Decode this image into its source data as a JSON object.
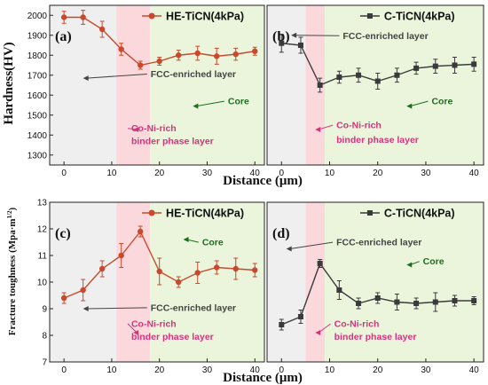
{
  "colors": {
    "he_series": "#c8492d",
    "c_series": "#3a3a3a",
    "gray_region": "#efefef",
    "pink_region": "#fbd8dc",
    "green_region": "#ebf5dc",
    "annotation_dark": "#444444",
    "annotation_pink": "#d6337f",
    "annotation_green": "#1e6e1e"
  },
  "figure": {
    "top_ylabel": "Hardness(HV)",
    "bottom_ylabel": "Fracture toughness (Mpa·m",
    "bottom_ylabel_sup": "1/2",
    "bottom_ylabel_close": ")",
    "xlabel": "Distance (μm)"
  },
  "chart_data": [
    {
      "panel": "(a)",
      "type": "line",
      "legend": "HE-TiCN(4kPa)",
      "legend_placement": "top-right",
      "marker": "circle",
      "ylim": [
        1250,
        2050
      ],
      "yticks": [
        1300,
        1400,
        1500,
        1600,
        1700,
        1800,
        1900,
        2000
      ],
      "xlim": [
        -3,
        42
      ],
      "xticks": [
        0,
        10,
        20,
        30,
        40
      ],
      "regions": [
        {
          "kind": "gray",
          "x": [
            -3,
            11
          ]
        },
        {
          "kind": "pink",
          "x": [
            11,
            18
          ]
        },
        {
          "kind": "green",
          "x": [
            18,
            42
          ]
        }
      ],
      "series": [
        {
          "x": [
            0,
            4,
            8,
            12,
            16,
            20,
            24,
            28,
            32,
            36,
            40
          ],
          "y": [
            1990,
            1990,
            1930,
            1830,
            1750,
            1770,
            1800,
            1810,
            1795,
            1805,
            1820
          ],
          "err": [
            30,
            35,
            40,
            30,
            20,
            20,
            25,
            35,
            40,
            30,
            20
          ]
        }
      ],
      "annotations": [
        {
          "text": "FCC-enriched layer",
          "color": "dark",
          "arrow_to": [
            4,
            1685
          ]
        },
        {
          "text": "Core",
          "color": "green",
          "arrow_to": [
            27,
            1545
          ]
        },
        {
          "text": "Co-Ni-rich",
          "color": "pink",
          "arrow_to": [
            14.5,
            1428
          ]
        },
        {
          "text": "binder phase layer",
          "color": "pink"
        }
      ]
    },
    {
      "panel": "(b)",
      "type": "line",
      "legend": "C-TiCN(4kPa)",
      "legend_placement": "top-right",
      "marker": "square",
      "ylim": [
        1250,
        2050
      ],
      "xlim": [
        -3,
        42
      ],
      "xticks": [
        0,
        10,
        20,
        30,
        40
      ],
      "regions": [
        {
          "kind": "gray",
          "x": [
            -3,
            5
          ]
        },
        {
          "kind": "pink",
          "x": [
            5,
            9
          ]
        },
        {
          "kind": "green",
          "x": [
            9,
            42
          ]
        }
      ],
      "series": [
        {
          "x": [
            0,
            4,
            8,
            12,
            16,
            20,
            24,
            28,
            32,
            36,
            40
          ],
          "y": [
            1860,
            1850,
            1650,
            1690,
            1700,
            1670,
            1700,
            1735,
            1745,
            1750,
            1755
          ],
          "err": [
            45,
            40,
            35,
            30,
            35,
            40,
            35,
            30,
            35,
            40,
            35
          ]
        }
      ],
      "annotations": [
        {
          "text": "FCC-enriched layer",
          "color": "dark",
          "arrow_to": [
            2,
            1900
          ]
        },
        {
          "text": "Core",
          "color": "green",
          "arrow_to": [
            26,
            1545
          ]
        },
        {
          "text": "Co-Ni-rich",
          "color": "pink",
          "arrow_to": [
            7,
            1428
          ]
        },
        {
          "text": "binder phase layer",
          "color": "pink"
        }
      ]
    },
    {
      "panel": "(c)",
      "type": "line",
      "legend": "HE-TiCN(4kPa)",
      "legend_placement": "top-right",
      "marker": "circle",
      "ylim": [
        7,
        13
      ],
      "yticks": [
        7,
        8,
        9,
        10,
        11,
        12,
        13
      ],
      "xlim": [
        -3,
        42
      ],
      "xticks": [
        0,
        10,
        20,
        30,
        40
      ],
      "regions": [
        {
          "kind": "gray",
          "x": [
            -3,
            11
          ]
        },
        {
          "kind": "pink",
          "x": [
            11,
            18
          ]
        },
        {
          "kind": "green",
          "x": [
            18,
            42
          ]
        }
      ],
      "series": [
        {
          "x": [
            0,
            4,
            8,
            12,
            16,
            20,
            24,
            28,
            32,
            36,
            40
          ],
          "y": [
            9.4,
            9.7,
            10.5,
            11.0,
            11.9,
            10.4,
            10.0,
            10.35,
            10.55,
            10.5,
            10.45
          ],
          "err": [
            0.2,
            0.4,
            0.3,
            0.45,
            0.2,
            0.5,
            0.2,
            0.4,
            0.25,
            0.4,
            0.25
          ]
        }
      ],
      "annotations": [
        {
          "text": "Core",
          "color": "green",
          "arrow_to": [
            25,
            11.6
          ]
        },
        {
          "text": "FCC-enriched layer",
          "color": "dark",
          "arrow_to": [
            4,
            9.0
          ]
        },
        {
          "text": "Co-Ni-rich",
          "color": "pink",
          "arrow_to": [
            14.5,
            8.1
          ]
        },
        {
          "text": "binder phase layer",
          "color": "pink"
        }
      ]
    },
    {
      "panel": "(d)",
      "type": "line",
      "legend": "C-TiCN(4kPa)",
      "legend_placement": "top-right",
      "marker": "square",
      "ylim": [
        7,
        13
      ],
      "xlim": [
        -3,
        42
      ],
      "xticks": [
        0,
        10,
        20,
        30,
        40
      ],
      "regions": [
        {
          "kind": "gray",
          "x": [
            -3,
            5
          ]
        },
        {
          "kind": "pink",
          "x": [
            5,
            9
          ]
        },
        {
          "kind": "green",
          "x": [
            9,
            42
          ]
        }
      ],
      "series": [
        {
          "x": [
            0,
            4,
            8,
            12,
            16,
            20,
            24,
            28,
            32,
            36,
            40
          ],
          "y": [
            8.4,
            8.7,
            10.7,
            9.7,
            9.2,
            9.4,
            9.25,
            9.2,
            9.25,
            9.3,
            9.3
          ],
          "err": [
            0.2,
            0.25,
            0.15,
            0.35,
            0.2,
            0.2,
            0.3,
            0.2,
            0.35,
            0.2,
            0.15
          ]
        }
      ],
      "annotations": [
        {
          "text": "FCC-enriched layer",
          "color": "dark",
          "arrow_to": [
            1,
            11.25
          ]
        },
        {
          "text": "Core",
          "color": "green",
          "arrow_to": [
            26,
            10.65
          ]
        },
        {
          "text": "Co-Ni-rich",
          "color": "pink",
          "arrow_to": [
            7,
            8.1
          ]
        },
        {
          "text": "binder phase layer",
          "color": "pink"
        }
      ]
    }
  ]
}
